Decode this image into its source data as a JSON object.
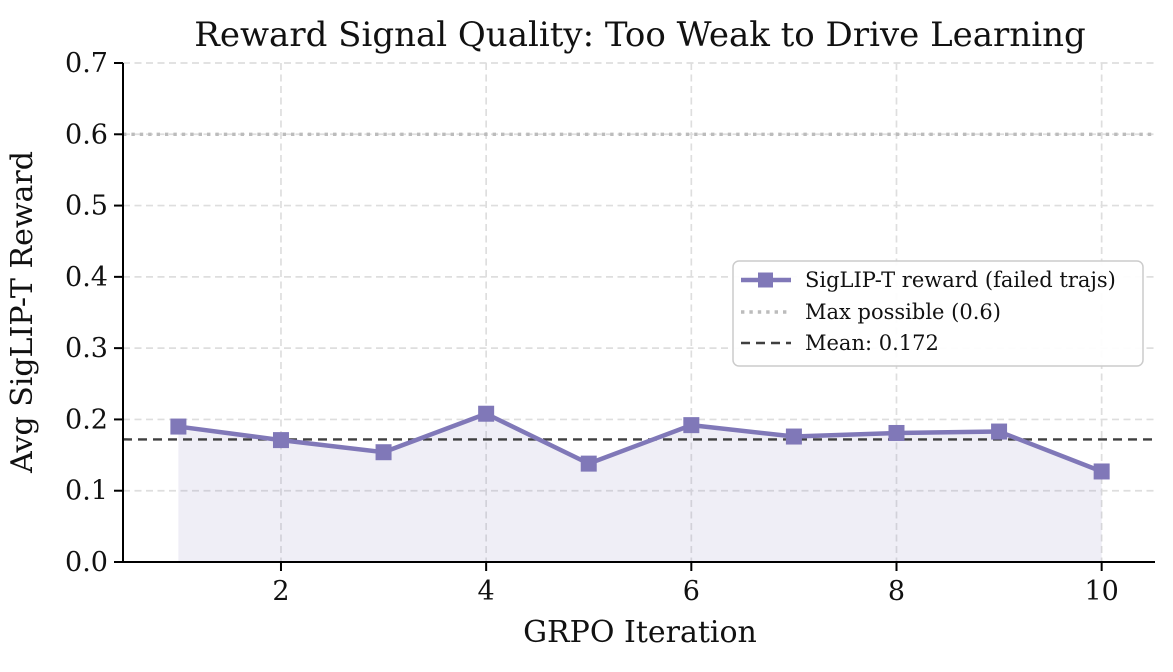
{
  "chart_data": {
    "type": "line",
    "title": "Reward Signal Quality: Too Weak to Drive Learning",
    "xlabel": "GRPO Iteration",
    "ylabel": "Avg SigLIP-T Reward",
    "x": [
      1,
      2,
      3,
      4,
      5,
      6,
      7,
      8,
      9,
      10
    ],
    "series": [
      {
        "name": "SigLIP-T reward (failed trajs)",
        "values": [
          0.19,
          0.171,
          0.154,
          0.208,
          0.138,
          0.192,
          0.176,
          0.181,
          0.183,
          0.127
        ],
        "color": "#8078b8",
        "marker": "square",
        "area_fill": true,
        "area_color": "rgba(128,120,184,0.13)"
      }
    ],
    "reference_lines": [
      {
        "name": "Max possible (0.6)",
        "value": 0.6,
        "style": "dotted",
        "color": "#bcbcbc"
      },
      {
        "name": "Mean: 0.172",
        "value": 0.172,
        "style": "dashed",
        "color": "#3f3f3f"
      }
    ],
    "xlim": [
      0.46,
      10.52
    ],
    "ylim": [
      0.0,
      0.7
    ],
    "x_ticks": [
      2,
      4,
      6,
      8,
      10
    ],
    "x_tick_labels": [
      "2",
      "4",
      "6",
      "8",
      "10"
    ],
    "y_ticks": [
      0.0,
      0.1,
      0.2,
      0.3,
      0.4,
      0.5,
      0.6,
      0.7
    ],
    "y_tick_labels": [
      "0.0",
      "0.1",
      "0.2",
      "0.3",
      "0.4",
      "0.5",
      "0.6",
      "0.7"
    ],
    "grid": true,
    "grid_color": "#dedede",
    "axis_color": "#000000",
    "legend_position": "center-right"
  }
}
